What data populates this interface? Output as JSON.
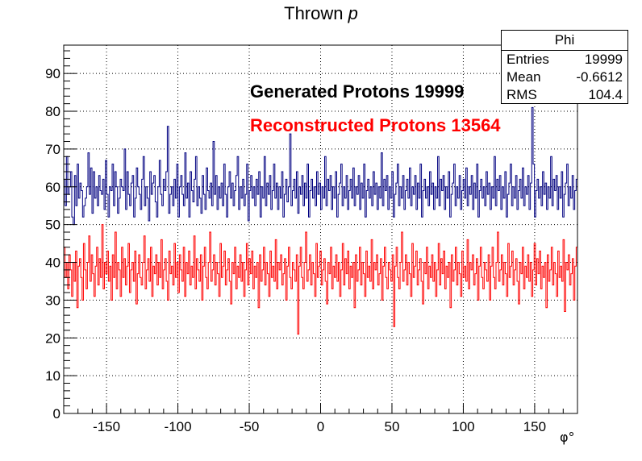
{
  "title_main": "Thrown ",
  "title_var": "p",
  "legend": {
    "generated": "Generated Protons 19999",
    "reconstructed": "Reconstructed Protons 13564"
  },
  "stats": {
    "name": "Phi",
    "rows": [
      {
        "label": "Entries",
        "value": "19999"
      },
      {
        "label": "Mean",
        "value": "-0.6612"
      },
      {
        "label": "RMS",
        "value": "104.4"
      }
    ]
  },
  "colors": {
    "generated": "#000080",
    "reconstructed": "#ff0000",
    "axis": "#000000",
    "grid": "#000000"
  },
  "chart_data": {
    "type": "histogram",
    "title": "Thrown p",
    "xlabel": "φ°",
    "ylabel": "",
    "xlim": [
      -180,
      180
    ],
    "ylim": [
      0,
      97.5
    ],
    "grid": true,
    "legend_position": "top-center",
    "x_ticks": [
      -150,
      -100,
      -50,
      0,
      50,
      100,
      150
    ],
    "y_ticks": [
      0,
      10,
      20,
      30,
      40,
      50,
      60,
      70,
      80,
      90
    ],
    "bin_width": 1,
    "series": [
      {
        "name": "Generated Protons 19999",
        "color": "#000080",
        "values": [
          62,
          55,
          68,
          58,
          60,
          64,
          52,
          50,
          63,
          55,
          66,
          57,
          61,
          59,
          52,
          55,
          57,
          60,
          69,
          58,
          65,
          53,
          64,
          57,
          60,
          55,
          63,
          59,
          58,
          62,
          54,
          67,
          58,
          52,
          60,
          59,
          66,
          55,
          64,
          60,
          53,
          57,
          62,
          60,
          59,
          70,
          54,
          64,
          58,
          55,
          61,
          63,
          52,
          57,
          65,
          60,
          58,
          54,
          62,
          68,
          55,
          60,
          57,
          51,
          64,
          58,
          61,
          63,
          56,
          52,
          60,
          67,
          58,
          55,
          62,
          59,
          64,
          76,
          53,
          58,
          60,
          55,
          62,
          57,
          66,
          52,
          60,
          63,
          58,
          55,
          69,
          57,
          61,
          52,
          64,
          59,
          56,
          62,
          68,
          55,
          60,
          57,
          53,
          63,
          58,
          54,
          65,
          59,
          57,
          61,
          55,
          72,
          58,
          63,
          54,
          60,
          57,
          61,
          55,
          66,
          58,
          52,
          60,
          64,
          57,
          61,
          55,
          59,
          63,
          68,
          54,
          60,
          57,
          62,
          55,
          58,
          66,
          51,
          59,
          63,
          57,
          60,
          55,
          62,
          58,
          64,
          52,
          60,
          57,
          68,
          55,
          61,
          58,
          63,
          54,
          59,
          66,
          57,
          61,
          54,
          60,
          57,
          64,
          52,
          58,
          62,
          56,
          60,
          74,
          55,
          59,
          62,
          57,
          64,
          53,
          60,
          58,
          63,
          55,
          61,
          57,
          66,
          52,
          59,
          62,
          57,
          60,
          55,
          64,
          58,
          61,
          54,
          60,
          57,
          68,
          55,
          62,
          59,
          63,
          54,
          60,
          57,
          64,
          52,
          58,
          61,
          66,
          55,
          60,
          57,
          63,
          54,
          59,
          62,
          57,
          65,
          55,
          60,
          58,
          63,
          54,
          61,
          57,
          66,
          52,
          59,
          62,
          57,
          60,
          55,
          64,
          58,
          61,
          54,
          60,
          57,
          69,
          55,
          62,
          59,
          63,
          54,
          60,
          57,
          64,
          52,
          58,
          61,
          66,
          55,
          60,
          57,
          63,
          54,
          59,
          62,
          57,
          65,
          55,
          60,
          58,
          63,
          54,
          61,
          57,
          66,
          52,
          59,
          62,
          57,
          60,
          55,
          64,
          58,
          61,
          54,
          60,
          57,
          68,
          55,
          62,
          59,
          63,
          54,
          60,
          57,
          64,
          52,
          58,
          61,
          66,
          55,
          60,
          57,
          63,
          54,
          59,
          62,
          57,
          65,
          55,
          60,
          58,
          63,
          54,
          61,
          57,
          66,
          52,
          59,
          62,
          57,
          60,
          55,
          64,
          58,
          61,
          54,
          60,
          57,
          68,
          55,
          62,
          59,
          63,
          54,
          60,
          57,
          64,
          52,
          58,
          61,
          66,
          55,
          60,
          57,
          63,
          54,
          59,
          62,
          57,
          65,
          55,
          60,
          58,
          63,
          54,
          61,
          81,
          66,
          52,
          59,
          62,
          57,
          60,
          55,
          64,
          58,
          61,
          54,
          60,
          57,
          68,
          55,
          62,
          59,
          63,
          54,
          60,
          57,
          64,
          52,
          58,
          61,
          66,
          55,
          60,
          57,
          63,
          54,
          59,
          62
        ]
      },
      {
        "name": "Reconstructed Protons 13564",
        "color": "#ff0000",
        "values": [
          44,
          36,
          40,
          33,
          42,
          38,
          31,
          40,
          35,
          43,
          28,
          39,
          41,
          36,
          30,
          45,
          38,
          33,
          40,
          47,
          35,
          42,
          37,
          31,
          39,
          44,
          34,
          41,
          36,
          50,
          33,
          40,
          37,
          43,
          35,
          39,
          30,
          42,
          36,
          48,
          33,
          40,
          38,
          31,
          44,
          36,
          41,
          34,
          39,
          45,
          32,
          38,
          40,
          35,
          43,
          29,
          37,
          42,
          36,
          34,
          40,
          47,
          33,
          38,
          41,
          35,
          44,
          31,
          39,
          37,
          42,
          34,
          40,
          36,
          46,
          33,
          38,
          41,
          35,
          30,
          43,
          37,
          39,
          34,
          45,
          36,
          40,
          32,
          42,
          38,
          35,
          44,
          31,
          40,
          37,
          43,
          34,
          39,
          36,
          47,
          33,
          41,
          38,
          35,
          42,
          30,
          39,
          44,
          36,
          33,
          40,
          48,
          35,
          38,
          42,
          34,
          40,
          37,
          31,
          45,
          36,
          39,
          43,
          34,
          38,
          41,
          35,
          29,
          40,
          37,
          44,
          33,
          39,
          36,
          42,
          35,
          40,
          31,
          38,
          45,
          34,
          41,
          37,
          43,
          33,
          39,
          36,
          40,
          28,
          42,
          35,
          38,
          44,
          34,
          40,
          37,
          31,
          43,
          36,
          39,
          35,
          46,
          33,
          40,
          38,
          42,
          34,
          37,
          41,
          30,
          39,
          44,
          36,
          33,
          40,
          38,
          35,
          42,
          21,
          39,
          44,
          36,
          33,
          40,
          48,
          35,
          38,
          42,
          34,
          40,
          37,
          31,
          45,
          36,
          39,
          43,
          34,
          38,
          41,
          35,
          29,
          40,
          37,
          44,
          33,
          39,
          36,
          42,
          35,
          40,
          31,
          38,
          45,
          34,
          41,
          37,
          43,
          33,
          39,
          36,
          40,
          28,
          42,
          35,
          38,
          44,
          34,
          40,
          37,
          31,
          43,
          36,
          39,
          35,
          46,
          33,
          40,
          38,
          42,
          34,
          37,
          41,
          30,
          39,
          44,
          36,
          33,
          40,
          38,
          35,
          42,
          23,
          39,
          44,
          36,
          33,
          40,
          48,
          35,
          38,
          42,
          34,
          40,
          37,
          31,
          45,
          36,
          39,
          43,
          34,
          38,
          41,
          35,
          29,
          40,
          37,
          44,
          33,
          39,
          36,
          42,
          35,
          40,
          31,
          38,
          45,
          34,
          41,
          37,
          43,
          33,
          39,
          36,
          40,
          28,
          42,
          35,
          38,
          44,
          34,
          40,
          37,
          31,
          43,
          36,
          39,
          35,
          46,
          33,
          40,
          38,
          42,
          34,
          37,
          41,
          30,
          39,
          44,
          36,
          33,
          40,
          38,
          35,
          42,
          30,
          39,
          44,
          36,
          33,
          40,
          48,
          35,
          38,
          42,
          34,
          40,
          37,
          31,
          45,
          36,
          39,
          43,
          34,
          38,
          41,
          35,
          29,
          40,
          37,
          44,
          33,
          39,
          36,
          42,
          35,
          40,
          31,
          38,
          45,
          34,
          41,
          37,
          43,
          33,
          39,
          36,
          40,
          28,
          42,
          35,
          38,
          44,
          34,
          40,
          37,
          31,
          43,
          36,
          39,
          35,
          46,
          27,
          40,
          38,
          42,
          34,
          37,
          41,
          30,
          39,
          44
        ]
      }
    ]
  }
}
